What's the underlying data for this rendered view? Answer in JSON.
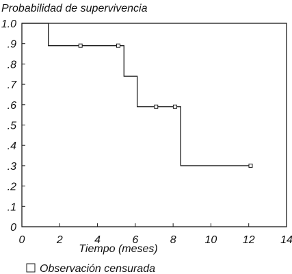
{
  "chart_data": {
    "type": "line",
    "title": "",
    "ylabel": "Probabilidad de supervivencia",
    "xlabel": "Tiempo (meses)",
    "xlim": [
      0,
      14
    ],
    "ylim": [
      0,
      1.0
    ],
    "x_ticks": [
      0,
      2,
      4,
      6,
      8,
      10,
      12,
      14
    ],
    "x_tick_labels": [
      "0",
      "2",
      "4",
      "6",
      "8",
      "10",
      "12",
      "14"
    ],
    "y_ticks": [
      0,
      0.1,
      0.2,
      0.3,
      0.4,
      0.5,
      0.6,
      0.7,
      0.8,
      0.9,
      1.0
    ],
    "y_tick_labels": [
      "0",
      ".1",
      ".2",
      ".3",
      ".4",
      ".5",
      ".6",
      ".7",
      ".8",
      ".9",
      "1.0"
    ],
    "grid": false,
    "legend_position": "bottom-left",
    "legend_label": "Observación censurada",
    "series": [
      {
        "style": "step",
        "points": [
          {
            "x": 0,
            "y": 1.0
          },
          {
            "x": 1.4,
            "y": 0.89
          },
          {
            "x": 5.4,
            "y": 0.74
          },
          {
            "x": 6.1,
            "y": 0.59
          },
          {
            "x": 8.4,
            "y": 0.3
          }
        ],
        "end_x": 12.1,
        "censored": [
          {
            "x": 3.1,
            "y": 0.89
          },
          {
            "x": 5.1,
            "y": 0.89
          },
          {
            "x": 7.1,
            "y": 0.59
          },
          {
            "x": 8.1,
            "y": 0.59
          },
          {
            "x": 12.1,
            "y": 0.3
          }
        ]
      }
    ],
    "line_color": "#1a1a1a"
  }
}
